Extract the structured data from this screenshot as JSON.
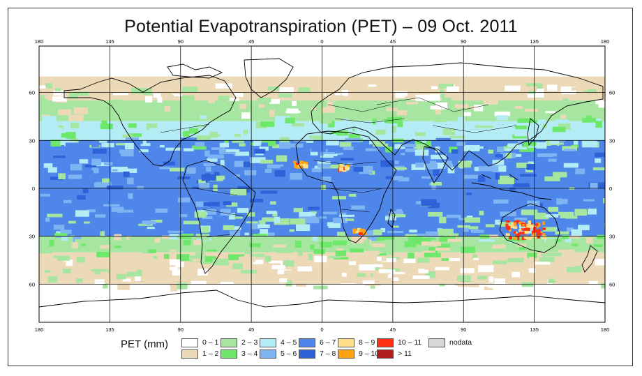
{
  "title": "Potential Evapotranspiration (PET) – 09 Oct. 2011",
  "legend": {
    "title": "PET (mm)",
    "items": [
      {
        "label": "0 – 1",
        "color": "#ffffff"
      },
      {
        "label": "1 – 2",
        "color": "#ecd9b8"
      },
      {
        "label": "2 – 3",
        "color": "#a6e6a0"
      },
      {
        "label": "3 – 4",
        "color": "#6ee86a"
      },
      {
        "label": "4 – 5",
        "color": "#b4ecf6"
      },
      {
        "label": "5 – 6",
        "color": "#7fb4f2"
      },
      {
        "label": "6 – 7",
        "color": "#4f86ea"
      },
      {
        "label": "7 – 8",
        "color": "#2e62d8"
      },
      {
        "label": "8 – 9",
        "color": "#ffe08a"
      },
      {
        "label": "9 – 10",
        "color": "#ffa214"
      },
      {
        "label": "10 – 11",
        "color": "#ff3010"
      },
      {
        "label": "> 11",
        "color": "#b01e1e"
      },
      {
        "label": "nodata",
        "color": "#d8d8d8"
      }
    ]
  },
  "axes": {
    "lon_ticks": [
      "180",
      "135",
      "90",
      "45",
      "0",
      "45",
      "90",
      "135",
      "180"
    ],
    "lat_ticks": [
      "60",
      "30",
      "0",
      "30",
      "60"
    ]
  },
  "map_data": {
    "projection": "equirectangular",
    "lon_range": [
      -180,
      180
    ],
    "lat_range": [
      -90,
      90
    ],
    "gridlines_lon": [
      -135,
      -90,
      -45,
      0,
      45,
      90,
      135
    ],
    "gridlines_lat": [
      60,
      30,
      0,
      -30,
      -60
    ],
    "bands": [
      {
        "lat_from": 90,
        "lat_to": 70,
        "class": "0 – 1"
      },
      {
        "lat_from": 70,
        "lat_to": 55,
        "class": "1 – 2"
      },
      {
        "lat_from": 55,
        "lat_to": 42,
        "class": "2 – 3"
      },
      {
        "lat_from": 42,
        "lat_to": 30,
        "class": "4 – 5"
      },
      {
        "lat_from": 30,
        "lat_to": -30,
        "class": "6 – 7"
      },
      {
        "lat_from": -30,
        "lat_to": -40,
        "class": "2 – 3"
      },
      {
        "lat_from": -40,
        "lat_to": -60,
        "class": "1 – 2"
      },
      {
        "lat_from": -60,
        "lat_to": -90,
        "class": "0 – 1"
      }
    ],
    "hotspots": [
      {
        "region": "Australia interior",
        "lon": 128,
        "lat": -25,
        "class": "10 – 11"
      },
      {
        "region": "West Africa coast",
        "lon": -15,
        "lat": 16,
        "class": "9 – 10"
      },
      {
        "region": "Sahel",
        "lon": 12,
        "lat": 14,
        "class": "8 – 9"
      },
      {
        "region": "Southern Africa",
        "lon": 22,
        "lat": -26,
        "class": "9 – 10"
      }
    ]
  }
}
